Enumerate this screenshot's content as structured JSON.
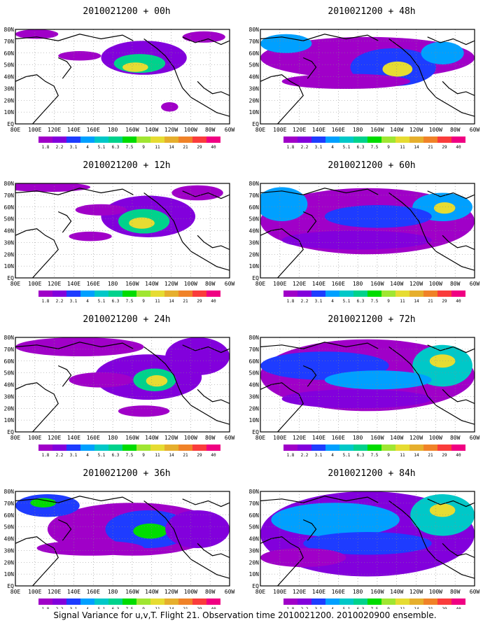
{
  "panels": [
    {
      "title": "2010021200 + 00h",
      "id": "00h",
      "col": 0,
      "row": 0
    },
    {
      "title": "2010021200 + 48h",
      "id": "48h",
      "col": 1,
      "row": 0
    },
    {
      "title": "2010021200 + 12h",
      "id": "12h",
      "col": 0,
      "row": 1
    },
    {
      "title": "2010021200 + 60h",
      "id": "60h",
      "col": 1,
      "row": 1
    },
    {
      "title": "2010021200 + 24h",
      "id": "24h",
      "col": 0,
      "row": 2
    },
    {
      "title": "2010021200 + 72h",
      "id": "72h",
      "col": 1,
      "row": 2
    },
    {
      "title": "2010021200 + 36h",
      "id": "36h",
      "col": 0,
      "row": 3
    },
    {
      "title": "2010021200 + 84h",
      "id": "84h",
      "col": 1,
      "row": 3
    }
  ],
  "lat_labels": [
    "80N",
    "70N",
    "60N",
    "50N",
    "40N",
    "30N",
    "20N",
    "10N",
    "EQ"
  ],
  "lon_labels": [
    "80E",
    "100E",
    "120E",
    "140E",
    "160E",
    "180",
    "160W",
    "140W",
    "120W",
    "100W",
    "80W",
    "60W"
  ],
  "colorbar": {
    "labels": [
      "1.8",
      "2.2",
      "3.1",
      "4",
      "5.1",
      "6.3",
      "7.5",
      "9",
      "11",
      "14",
      "21",
      "29",
      "40"
    ],
    "colors": [
      "#a000c8",
      "#8200dc",
      "#1e3cff",
      "#00a0ff",
      "#00c8c8",
      "#00d28c",
      "#00dc00",
      "#a0e632",
      "#e6dc32",
      "#e6af2d",
      "#f08228",
      "#fa3c3c",
      "#f00082"
    ]
  },
  "caption": "Signal Variance for u,v,T. Flight 21. Observation time 2010021200. 2010020900 ensemble."
}
